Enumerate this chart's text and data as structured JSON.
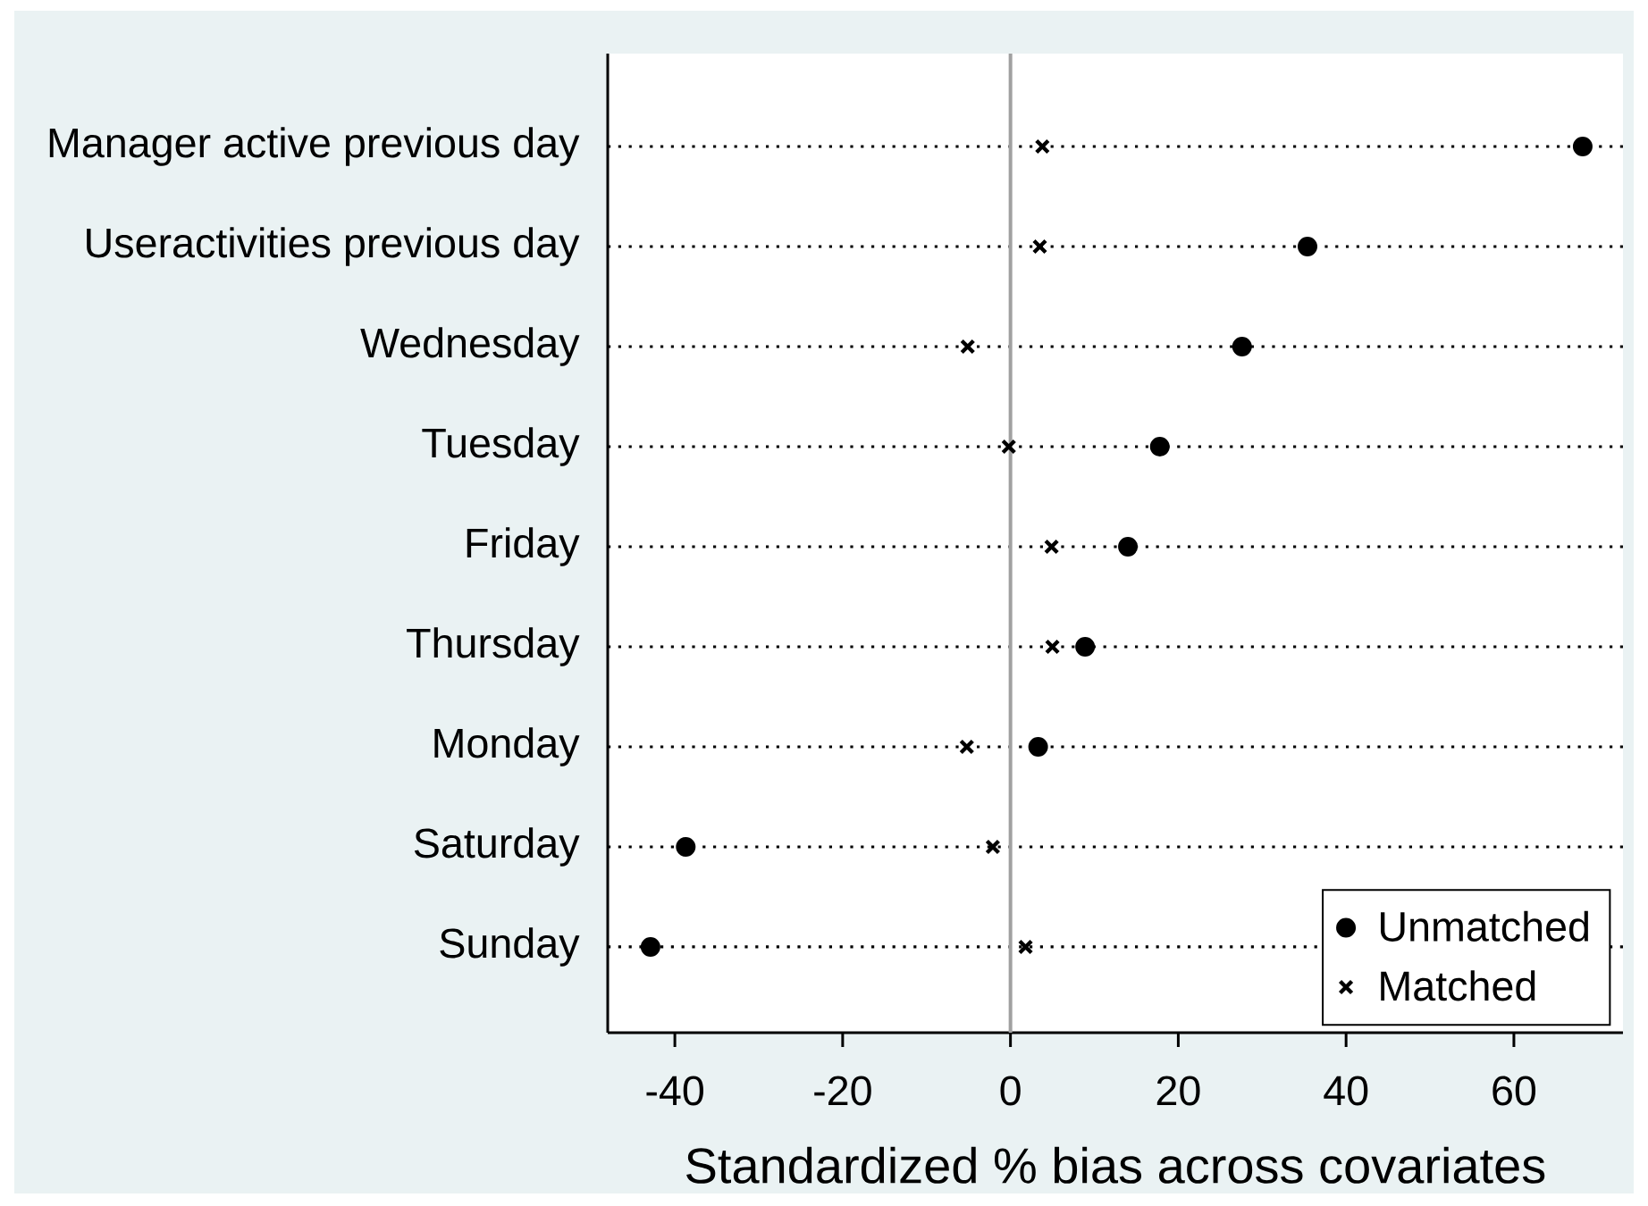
{
  "chart_data": {
    "type": "scatter",
    "orientation": "horizontal",
    "categories": [
      "Manager active previous day",
      "Useractivities previous day",
      "Wednesday",
      "Tuesday",
      "Friday",
      "Thursday",
      "Monday",
      "Saturday",
      "Sunday"
    ],
    "series": [
      {
        "name": "Unmatched",
        "color": "#000000",
        "marker": "circle",
        "values": [
          68.2,
          35.4,
          27.6,
          17.8,
          14.0,
          8.9,
          3.3,
          -38.7,
          -42.9
        ]
      },
      {
        "name": "Matched",
        "color": "#000000",
        "marker": "cross",
        "values": [
          3.8,
          3.5,
          -5.1,
          -0.2,
          4.9,
          5.0,
          -5.2,
          -2.1,
          1.8
        ]
      }
    ],
    "xlabel": "Standardized % bias across covariates",
    "xlim": [
      -48,
      73
    ],
    "xticks": [
      -40,
      -20,
      0,
      20,
      40,
      60
    ],
    "ref_lines": [
      {
        "axis": "x",
        "value": 0,
        "color": "#a0a0a0"
      }
    ],
    "grid": "y",
    "legend": "bottom right"
  }
}
